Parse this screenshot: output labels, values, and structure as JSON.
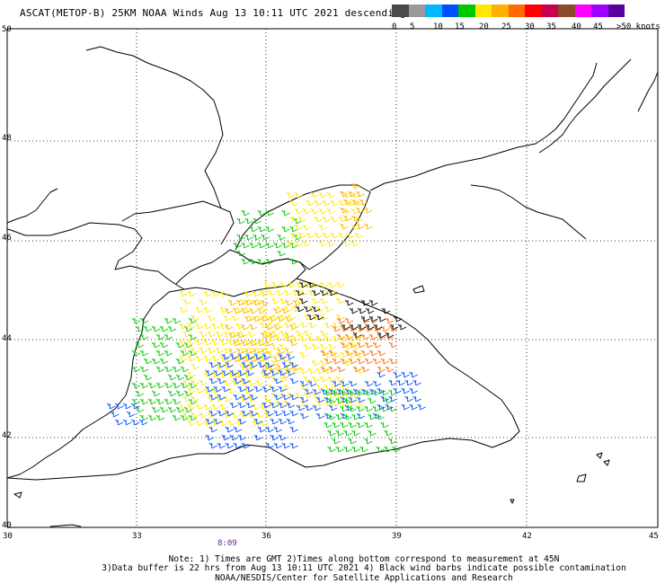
{
  "title": "ASCAT(METOP-B) 25KM NOAA Winds  Aug 13 10:11 UTC 2021 descending",
  "lat_labels": [
    "50",
    "48",
    "46",
    "44",
    "42",
    "40"
  ],
  "lon_labels": [
    "30",
    "33",
    "36",
    "39",
    "42",
    "45"
  ],
  "time_label": "8:09",
  "legend": {
    "colors": [
      "#4a4a4a",
      "#9a9a9a",
      "#00b8ff",
      "#0050ff",
      "#00c800",
      "#ffe800",
      "#ffb000",
      "#ff6a00",
      "#ff0000",
      "#c80050",
      "#8b4a2a",
      "#ff00ff",
      "#a000ff",
      "#5a00a0"
    ],
    "labels": [
      "0",
      "5",
      "10",
      "15",
      "20",
      "25",
      "30",
      "35",
      "40",
      "45",
      ">50 knots"
    ]
  },
  "notes": [
    "Note: 1) Times are GMT 2)Times along bottom correspond to measurement at 45N",
    "3)Data buffer is 22 hrs from Aug 13 10:11 UTC 2021 4) Black wind barbs indicate possible contamination",
    "NOAA/NESDIS/Center for Satellite Applications and Research"
  ]
}
